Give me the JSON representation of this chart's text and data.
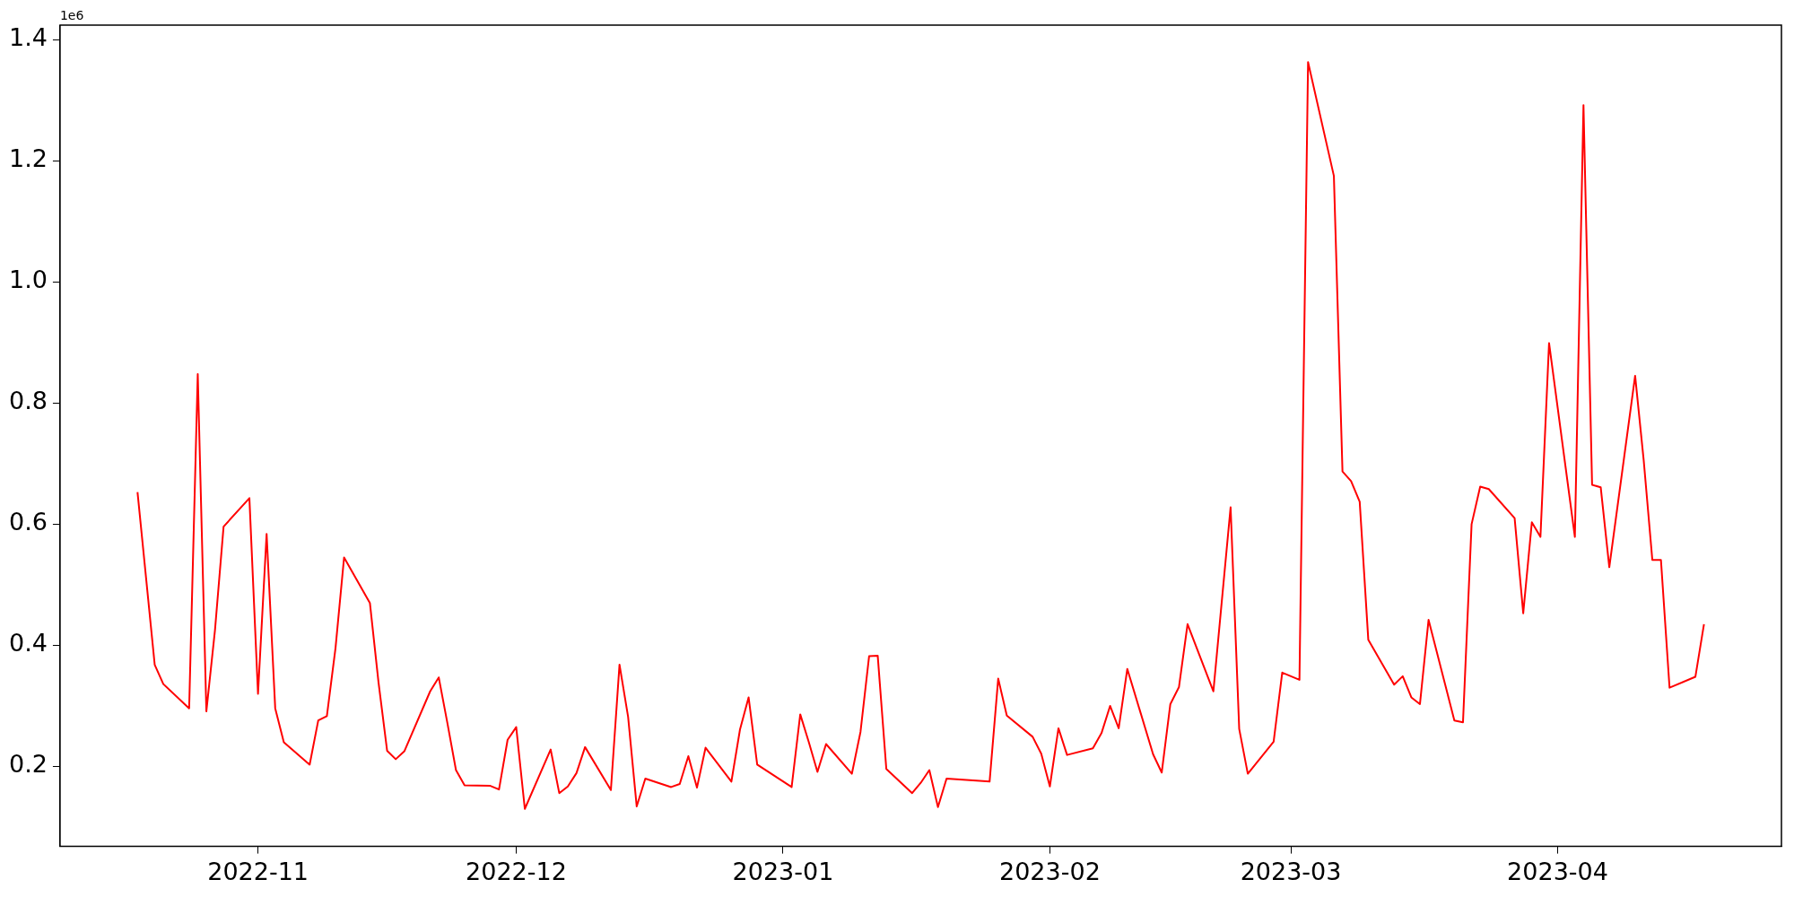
{
  "chart_data": {
    "type": "line",
    "annotations": [
      "1e6"
    ],
    "grid": false,
    "legend": false,
    "marker": "none",
    "line_style": "solid",
    "xlim": [
      "2022-10-09",
      "2023-04-27"
    ],
    "xticks": [
      {
        "value": "2022-11-01",
        "label": "2022-11"
      },
      {
        "value": "2022-12-01",
        "label": "2022-12"
      },
      {
        "value": "2023-01-01",
        "label": "2023-01"
      },
      {
        "value": "2023-02-01",
        "label": "2023-02"
      },
      {
        "value": "2023-03-01",
        "label": "2023-03"
      },
      {
        "value": "2023-04-01",
        "label": "2023-04"
      }
    ],
    "ylim": [
      0.068,
      1.424
    ],
    "yticks": [
      {
        "value": 0.2,
        "label": "0.2"
      },
      {
        "value": 0.4,
        "label": "0.4"
      },
      {
        "value": 0.6,
        "label": "0.6"
      },
      {
        "value": 0.8,
        "label": "0.8"
      },
      {
        "value": 1,
        "label": "1.0"
      },
      {
        "value": 1.2,
        "label": "1.2"
      },
      {
        "value": 1.4,
        "label": "1.4"
      }
    ],
    "series": [
      {
        "color": "#ff0000",
        "x": [
          "2022-10-18",
          "2022-10-20",
          "2022-10-21",
          "2022-10-24",
          "2022-10-25",
          "2022-10-26",
          "2022-10-27",
          "2022-10-28",
          "2022-10-31",
          "2022-11-01",
          "2022-11-02",
          "2022-11-03",
          "2022-11-04",
          "2022-11-07",
          "2022-11-08",
          "2022-11-09",
          "2022-11-10",
          "2022-11-11",
          "2022-11-14",
          "2022-11-15",
          "2022-11-16",
          "2022-11-17",
          "2022-11-18",
          "2022-11-21",
          "2022-11-22",
          "2022-11-23",
          "2022-11-24",
          "2022-11-25",
          "2022-11-28",
          "2022-11-29",
          "2022-11-30",
          "2022-12-01",
          "2022-12-02",
          "2022-12-05",
          "2022-12-06",
          "2022-12-07",
          "2022-12-08",
          "2022-12-09",
          "2022-12-12",
          "2022-12-13",
          "2022-12-14",
          "2022-12-15",
          "2022-12-16",
          "2022-12-19",
          "2022-12-20",
          "2022-12-21",
          "2022-12-22",
          "2022-12-23",
          "2022-12-26",
          "2022-12-27",
          "2022-12-28",
          "2022-12-29",
          "2023-01-02",
          "2023-01-03",
          "2023-01-04",
          "2023-01-05",
          "2023-01-06",
          "2023-01-09",
          "2023-01-10",
          "2023-01-11",
          "2023-01-12",
          "2023-01-13",
          "2023-01-16",
          "2023-01-17",
          "2023-01-18",
          "2023-01-19",
          "2023-01-20",
          "2023-01-25",
          "2023-01-26",
          "2023-01-27",
          "2023-01-30",
          "2023-01-31",
          "2023-02-01",
          "2023-02-02",
          "2023-02-03",
          "2023-02-06",
          "2023-02-07",
          "2023-02-08",
          "2023-02-09",
          "2023-02-10",
          "2023-02-13",
          "2023-02-14",
          "2023-02-15",
          "2023-02-16",
          "2023-02-17",
          "2023-02-20",
          "2023-02-22",
          "2023-02-23",
          "2023-02-24",
          "2023-02-27",
          "2023-02-28",
          "2023-03-02",
          "2023-03-03",
          "2023-03-06",
          "2023-03-07",
          "2023-03-08",
          "2023-03-09",
          "2023-03-10",
          "2023-03-13",
          "2023-03-14",
          "2023-03-15",
          "2023-03-16",
          "2023-03-17",
          "2023-03-20",
          "2023-03-21",
          "2023-03-22",
          "2023-03-23",
          "2023-03-24",
          "2023-03-27",
          "2023-03-28",
          "2023-03-29",
          "2023-03-30",
          "2023-03-31",
          "2023-04-03",
          "2023-04-04",
          "2023-04-05",
          "2023-04-06",
          "2023-04-07",
          "2023-04-10",
          "2023-04-11",
          "2023-04-12",
          "2023-04-13",
          "2023-04-14",
          "2023-04-17",
          "2023-04-18"
        ],
        "values": [
          0.653,
          0.368,
          0.336,
          0.296,
          0.848,
          0.291,
          0.425,
          0.596,
          0.643,
          0.32,
          0.584,
          0.296,
          0.24,
          0.203,
          0.276,
          0.283,
          0.395,
          0.545,
          0.47,
          0.339,
          0.226,
          0.212,
          0.225,
          0.324,
          0.347,
          0.272,
          0.194,
          0.169,
          0.168,
          0.162,
          0.244,
          0.265,
          0.13,
          0.228,
          0.156,
          0.167,
          0.189,
          0.232,
          0.161,
          0.368,
          0.282,
          0.134,
          0.18,
          0.166,
          0.171,
          0.217,
          0.165,
          0.231,
          0.175,
          0.261,
          0.314,
          0.203,
          0.166,
          0.286,
          0.24,
          0.191,
          0.237,
          0.188,
          0.257,
          0.382,
          0.383,
          0.196,
          0.156,
          0.173,
          0.194,
          0.133,
          0.18,
          0.175,
          0.345,
          0.284,
          0.249,
          0.221,
          0.167,
          0.263,
          0.219,
          0.23,
          0.255,
          0.3,
          0.263,
          0.361,
          0.22,
          0.19,
          0.303,
          0.331,
          0.435,
          0.324,
          0.628,
          0.262,
          0.188,
          0.241,
          0.355,
          0.343,
          1.363,
          1.175,
          0.687,
          0.671,
          0.637,
          0.409,
          0.335,
          0.349,
          0.314,
          0.303,
          0.442,
          0.276,
          0.273,
          0.6,
          0.662,
          0.658,
          0.61,
          0.453,
          0.603,
          0.579,
          0.899,
          0.579,
          1.292,
          0.665,
          0.661,
          0.529,
          0.845,
          0.705,
          0.541,
          0.541,
          0.33,
          0.348,
          0.435
        ]
      }
    ]
  }
}
